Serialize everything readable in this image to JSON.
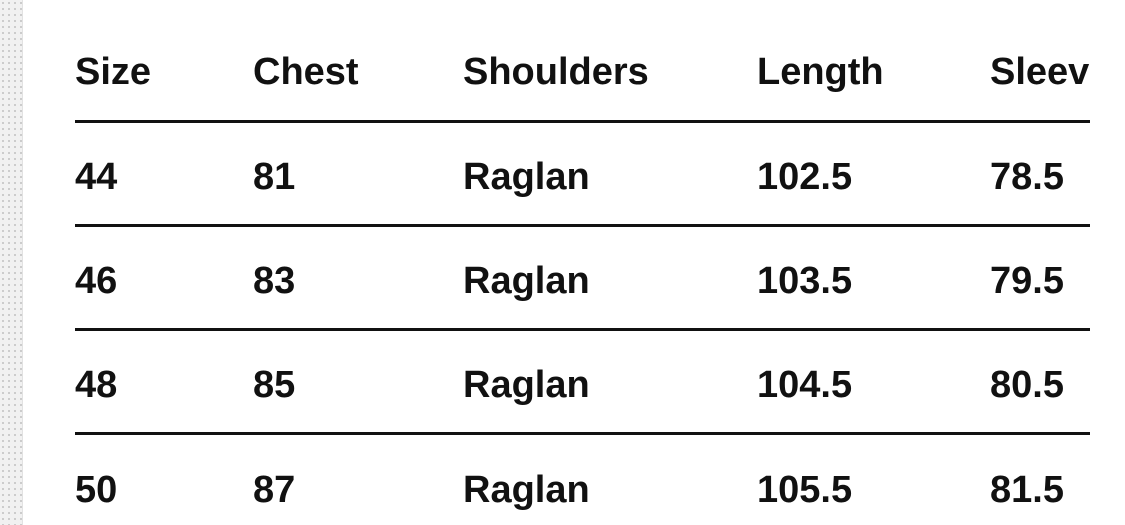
{
  "table": {
    "header": [
      "Size",
      "Chest",
      "Shoulders",
      "Length",
      "Sleev"
    ],
    "rows": [
      [
        "44",
        "81",
        "Raglan",
        "102.5",
        "78.5"
      ],
      [
        "46",
        "83",
        "Raglan",
        "103.5",
        "79.5"
      ],
      [
        "48",
        "85",
        "Raglan",
        "104.5",
        "80.5"
      ],
      [
        "50",
        "87",
        "Raglan",
        "105.5",
        "81.5"
      ]
    ]
  }
}
